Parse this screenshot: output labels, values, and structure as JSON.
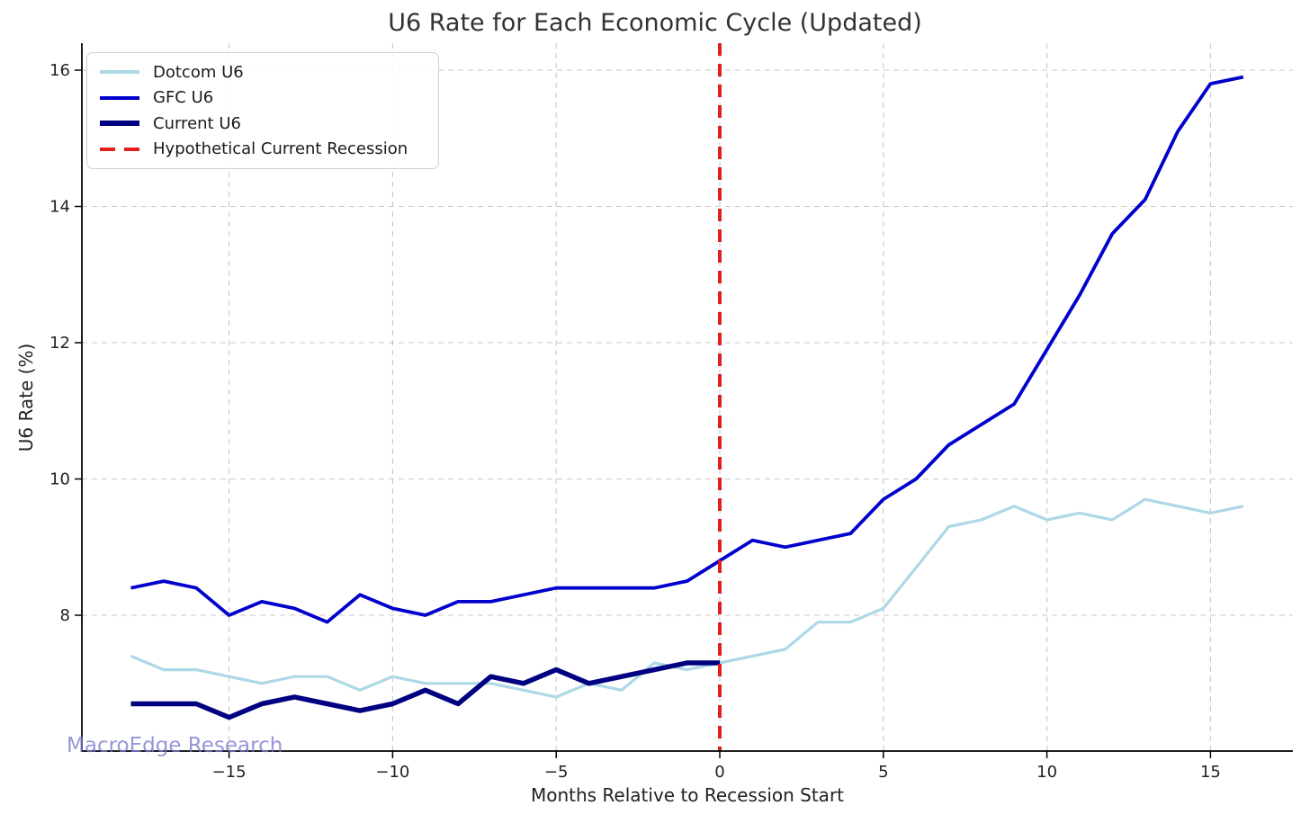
{
  "chart_data": {
    "type": "line",
    "title": "U6 Rate for Each Economic Cycle (Updated)",
    "xlabel": "Months Relative to Recession Start",
    "ylabel": "U6 Rate (%)",
    "watermark": "MacroEdge Research",
    "xlim": [
      -19.6,
      17.5
    ],
    "ylim": [
      6.0,
      16.4
    ],
    "x_ticks": [
      -15,
      -10,
      -5,
      0,
      5,
      10,
      15
    ],
    "y_ticks": [
      8,
      10,
      12,
      14,
      16
    ],
    "grid": true,
    "legend_position": "upper left",
    "series": [
      {
        "name": "Dotcom U6",
        "color": "#ADD8E6",
        "width": 3.2,
        "x": [
          -18,
          -17,
          -16,
          -15,
          -14,
          -13,
          -12,
          -11,
          -10,
          -9,
          -8,
          -7,
          -6,
          -5,
          -4,
          -3,
          -2,
          -1,
          0,
          1,
          2,
          3,
          4,
          5,
          6,
          7,
          8,
          9,
          10,
          11,
          12,
          13,
          14,
          15,
          16
        ],
        "values": [
          7.4,
          7.2,
          7.2,
          7.1,
          7.0,
          7.1,
          7.1,
          6.9,
          7.1,
          7.0,
          7.0,
          7.0,
          6.9,
          6.8,
          7.0,
          6.9,
          7.3,
          7.2,
          7.3,
          7.4,
          7.5,
          7.9,
          7.9,
          8.1,
          8.7,
          9.3,
          9.4,
          9.6,
          9.4,
          9.5,
          9.4,
          9.7,
          9.6,
          9.5,
          9.6
        ]
      },
      {
        "name": "GFC U6",
        "color": "#0000CD",
        "width": 3.8,
        "x": [
          -18,
          -17,
          -16,
          -15,
          -14,
          -13,
          -12,
          -11,
          -10,
          -9,
          -8,
          -7,
          -6,
          -5,
          -4,
          -3,
          -2,
          -1,
          0,
          1,
          2,
          3,
          4,
          5,
          6,
          7,
          8,
          9,
          10,
          11,
          12,
          13,
          14,
          15,
          16
        ],
        "values": [
          8.4,
          8.5,
          8.4,
          8.0,
          8.2,
          8.1,
          7.9,
          8.3,
          8.1,
          8.0,
          8.2,
          8.2,
          8.3,
          8.4,
          8.4,
          8.4,
          8.4,
          8.5,
          8.8,
          9.1,
          9.0,
          9.1,
          9.2,
          9.7,
          10.0,
          10.5,
          10.8,
          11.1,
          11.9,
          12.7,
          13.6,
          14.1,
          15.1,
          15.8,
          15.9
        ]
      },
      {
        "name": "Current U6",
        "color": "#000080",
        "width": 5.5,
        "x": [
          -18,
          -17,
          -16,
          -15,
          -14,
          -13,
          -12,
          -11,
          -10,
          -9,
          -8,
          -7,
          -6,
          -5,
          -4,
          -3,
          -2,
          -1,
          0
        ],
        "values": [
          6.7,
          6.7,
          6.7,
          6.5,
          6.7,
          6.8,
          6.7,
          6.6,
          6.7,
          6.9,
          6.7,
          7.1,
          7.0,
          7.2,
          7.0,
          7.1,
          7.2,
          7.3,
          7.3
        ]
      }
    ],
    "vline": {
      "label": "Hypothetical Current Recession",
      "x": 0,
      "color": "#E01F1F",
      "style": "dashed",
      "width": 4
    }
  }
}
